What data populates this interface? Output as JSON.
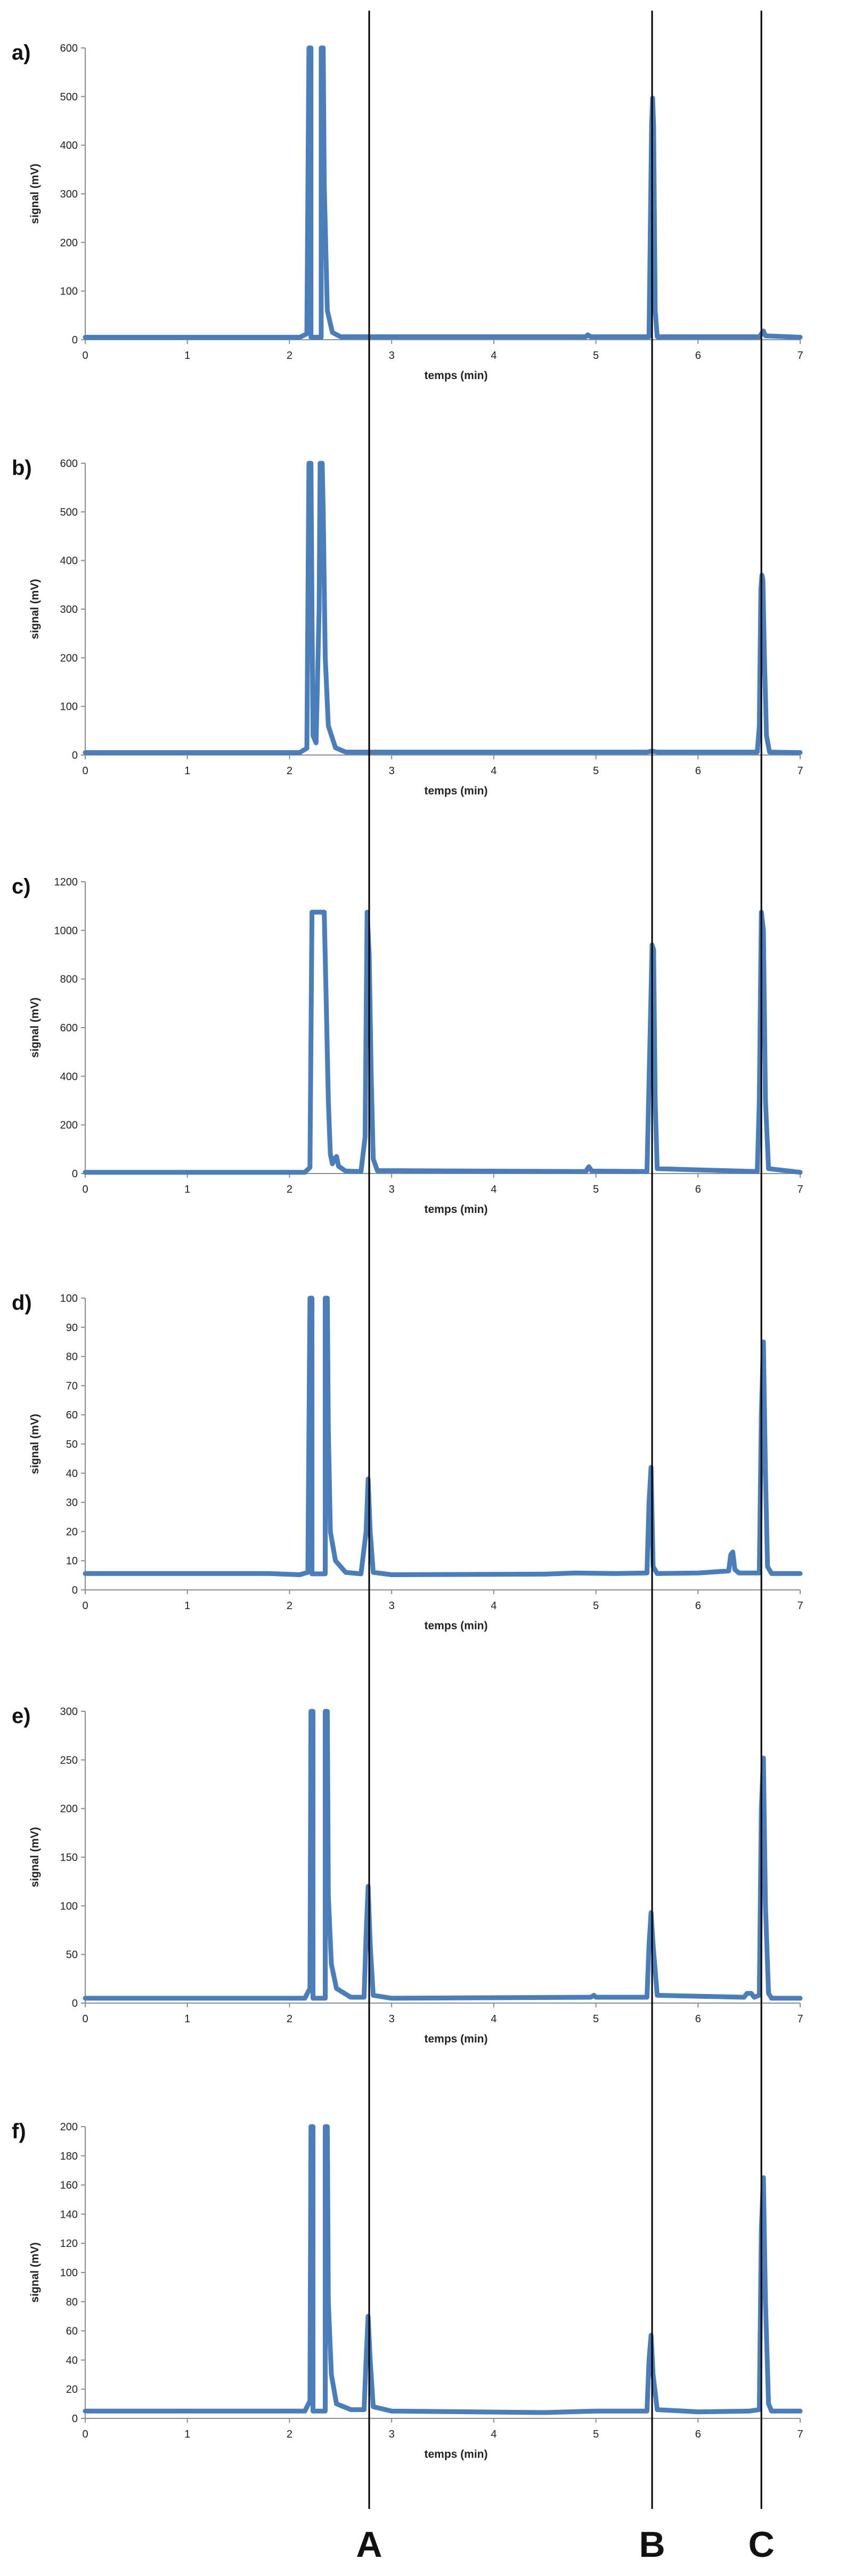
{
  "colors": {
    "series": "#4a7ebb",
    "axis": "#8c8c8c",
    "marker_line": "#000000"
  },
  "markers": [
    {
      "label": "A",
      "x": 2.78
    },
    {
      "label": "B",
      "x": 5.55
    },
    {
      "label": "C",
      "x": 6.62
    }
  ],
  "chart_data": [
    {
      "type": "line",
      "panel_label": "a)",
      "xlabel": "temps (min)",
      "ylabel": "signal (mV)",
      "xlim": [
        0,
        7
      ],
      "ylim": [
        0,
        600
      ],
      "xticks": [
        0,
        1,
        2,
        3,
        4,
        5,
        6,
        7
      ],
      "yticks": [
        0,
        100,
        200,
        300,
        400,
        500,
        600
      ],
      "series": [
        {
          "values": [
            [
              0,
              5
            ],
            [
              2.1,
              5
            ],
            [
              2.17,
              12
            ],
            [
              2.19,
              600
            ],
            [
              2.21,
              600
            ],
            [
              2.21,
              5
            ],
            [
              2.31,
              5
            ],
            [
              2.31,
              600
            ],
            [
              2.33,
              600
            ],
            [
              2.34,
              320
            ],
            [
              2.37,
              60
            ],
            [
              2.42,
              15
            ],
            [
              2.5,
              6
            ],
            [
              4.9,
              6
            ],
            [
              4.92,
              10
            ],
            [
              4.95,
              6
            ],
            [
              5.52,
              6
            ],
            [
              5.53,
              180
            ],
            [
              5.545,
              440
            ],
            [
              5.555,
              497
            ],
            [
              5.565,
              440
            ],
            [
              5.58,
              60
            ],
            [
              5.6,
              6
            ],
            [
              6.6,
              6
            ],
            [
              6.62,
              12
            ],
            [
              6.64,
              18
            ],
            [
              6.66,
              8
            ],
            [
              7,
              5
            ]
          ]
        }
      ]
    },
    {
      "type": "line",
      "panel_label": "b)",
      "xlabel": "temps (min)",
      "ylabel": "signal (mV)",
      "xlim": [
        0,
        7
      ],
      "ylim": [
        0,
        600
      ],
      "xticks": [
        0,
        1,
        2,
        3,
        4,
        5,
        6,
        7
      ],
      "yticks": [
        0,
        100,
        200,
        300,
        400,
        500,
        600
      ],
      "series": [
        {
          "values": [
            [
              0,
              5
            ],
            [
              2.1,
              5
            ],
            [
              2.17,
              14
            ],
            [
              2.19,
              600
            ],
            [
              2.21,
              600
            ],
            [
              2.22,
              300
            ],
            [
              2.23,
              40
            ],
            [
              2.26,
              25
            ],
            [
              2.29,
              300
            ],
            [
              2.3,
              600
            ],
            [
              2.32,
              600
            ],
            [
              2.33,
              500
            ],
            [
              2.35,
              200
            ],
            [
              2.38,
              60
            ],
            [
              2.45,
              15
            ],
            [
              2.55,
              6
            ],
            [
              5.5,
              6
            ],
            [
              5.55,
              8
            ],
            [
              5.6,
              6
            ],
            [
              6.58,
              6
            ],
            [
              6.6,
              60
            ],
            [
              6.615,
              340
            ],
            [
              6.625,
              370
            ],
            [
              6.635,
              360
            ],
            [
              6.65,
              200
            ],
            [
              6.67,
              40
            ],
            [
              6.7,
              6
            ],
            [
              7,
              5
            ]
          ]
        }
      ]
    },
    {
      "type": "line",
      "panel_label": "c)",
      "xlabel": "temps (min)",
      "ylabel": "signal (mV)",
      "xlim": [
        0,
        7
      ],
      "ylim": [
        0,
        1200
      ],
      "xticks": [
        0,
        1,
        2,
        3,
        4,
        5,
        6,
        7
      ],
      "yticks": [
        0,
        200,
        400,
        600,
        800,
        1000,
        1200
      ],
      "series": [
        {
          "values": [
            [
              0,
              5
            ],
            [
              2.15,
              5
            ],
            [
              2.2,
              25
            ],
            [
              2.22,
              1075
            ],
            [
              2.34,
              1075
            ],
            [
              2.36,
              700
            ],
            [
              2.38,
              300
            ],
            [
              2.4,
              80
            ],
            [
              2.42,
              40
            ],
            [
              2.44,
              60
            ],
            [
              2.46,
              70
            ],
            [
              2.48,
              30
            ],
            [
              2.55,
              10
            ],
            [
              2.7,
              8
            ],
            [
              2.74,
              150
            ],
            [
              2.76,
              1075
            ],
            [
              2.78,
              900
            ],
            [
              2.8,
              400
            ],
            [
              2.82,
              60
            ],
            [
              2.86,
              12
            ],
            [
              4.9,
              8
            ],
            [
              4.93,
              28
            ],
            [
              4.96,
              10
            ],
            [
              5.5,
              8
            ],
            [
              5.52,
              380
            ],
            [
              5.535,
              650
            ],
            [
              5.55,
              940
            ],
            [
              5.565,
              920
            ],
            [
              5.58,
              300
            ],
            [
              5.6,
              20
            ],
            [
              6.58,
              8
            ],
            [
              6.6,
              300
            ],
            [
              6.62,
              1075
            ],
            [
              6.64,
              1000
            ],
            [
              6.66,
              300
            ],
            [
              6.69,
              20
            ],
            [
              7,
              5
            ]
          ]
        }
      ]
    },
    {
      "type": "line",
      "panel_label": "d)",
      "xlabel": "temps (min)",
      "ylabel": "signal (mV)",
      "xlim": [
        0,
        7
      ],
      "ylim": [
        0,
        100
      ],
      "xticks": [
        0,
        1,
        2,
        3,
        4,
        5,
        6,
        7
      ],
      "yticks": [
        0,
        10,
        20,
        30,
        40,
        50,
        60,
        70,
        80,
        90,
        100
      ],
      "series": [
        {
          "values": [
            [
              0,
              5.6
            ],
            [
              1.8,
              5.6
            ],
            [
              2.1,
              5.2
            ],
            [
              2.18,
              6
            ],
            [
              2.2,
              100
            ],
            [
              2.22,
              100
            ],
            [
              2.22,
              5.5
            ],
            [
              2.35,
              5.5
            ],
            [
              2.35,
              100
            ],
            [
              2.37,
              100
            ],
            [
              2.38,
              55
            ],
            [
              2.4,
              20
            ],
            [
              2.45,
              10
            ],
            [
              2.55,
              6
            ],
            [
              2.7,
              5.5
            ],
            [
              2.75,
              20
            ],
            [
              2.77,
              38
            ],
            [
              2.79,
              20
            ],
            [
              2.82,
              6
            ],
            [
              3,
              5.2
            ],
            [
              4.5,
              5.4
            ],
            [
              4.8,
              5.8
            ],
            [
              5.2,
              5.6
            ],
            [
              5.5,
              5.8
            ],
            [
              5.52,
              30
            ],
            [
              5.54,
              42
            ],
            [
              5.56,
              8
            ],
            [
              5.6,
              5.6
            ],
            [
              6,
              5.8
            ],
            [
              6.3,
              6.5
            ],
            [
              6.32,
              12
            ],
            [
              6.34,
              13
            ],
            [
              6.36,
              7
            ],
            [
              6.4,
              5.8
            ],
            [
              6.6,
              5.8
            ],
            [
              6.62,
              60
            ],
            [
              6.64,
              85
            ],
            [
              6.66,
              40
            ],
            [
              6.68,
              8
            ],
            [
              6.72,
              5.6
            ],
            [
              7,
              5.6
            ]
          ]
        }
      ]
    },
    {
      "type": "line",
      "panel_label": "e)",
      "xlabel": "temps (min)",
      "ylabel": "signal (mV)",
      "xlim": [
        0,
        7
      ],
      "ylim": [
        0,
        300
      ],
      "xticks": [
        0,
        1,
        2,
        3,
        4,
        5,
        6,
        7
      ],
      "yticks": [
        0,
        50,
        100,
        150,
        200,
        250,
        300
      ],
      "series": [
        {
          "values": [
            [
              0,
              5
            ],
            [
              2.15,
              5
            ],
            [
              2.2,
              15
            ],
            [
              2.21,
              300
            ],
            [
              2.23,
              300
            ],
            [
              2.23,
              5
            ],
            [
              2.35,
              5
            ],
            [
              2.35,
              300
            ],
            [
              2.37,
              300
            ],
            [
              2.38,
              110
            ],
            [
              2.41,
              40
            ],
            [
              2.46,
              15
            ],
            [
              2.6,
              6
            ],
            [
              2.73,
              6
            ],
            [
              2.75,
              70
            ],
            [
              2.77,
              120
            ],
            [
              2.79,
              60
            ],
            [
              2.82,
              8
            ],
            [
              3,
              5
            ],
            [
              4.95,
              6
            ],
            [
              4.98,
              8
            ],
            [
              5.0,
              6
            ],
            [
              5.5,
              6
            ],
            [
              5.52,
              60
            ],
            [
              5.54,
              93
            ],
            [
              5.56,
              60
            ],
            [
              5.6,
              8
            ],
            [
              6.45,
              6
            ],
            [
              6.48,
              10
            ],
            [
              6.52,
              10
            ],
            [
              6.55,
              6
            ],
            [
              6.6,
              8
            ],
            [
              6.62,
              200
            ],
            [
              6.64,
              252
            ],
            [
              6.66,
              100
            ],
            [
              6.69,
              10
            ],
            [
              6.72,
              5
            ],
            [
              7,
              5
            ]
          ]
        }
      ]
    },
    {
      "type": "line",
      "panel_label": "f)",
      "xlabel": "temps (min)",
      "ylabel": "signal (mV)",
      "xlim": [
        0,
        7
      ],
      "ylim": [
        0,
        200
      ],
      "xticks": [
        0,
        1,
        2,
        3,
        4,
        5,
        6,
        7
      ],
      "yticks": [
        0,
        20,
        40,
        60,
        80,
        100,
        120,
        140,
        160,
        180,
        200
      ],
      "series": [
        {
          "values": [
            [
              0,
              5
            ],
            [
              2.15,
              5
            ],
            [
              2.2,
              12
            ],
            [
              2.21,
              200
            ],
            [
              2.23,
              200
            ],
            [
              2.23,
              5
            ],
            [
              2.35,
              5
            ],
            [
              2.35,
              200
            ],
            [
              2.37,
              200
            ],
            [
              2.38,
              80
            ],
            [
              2.41,
              30
            ],
            [
              2.46,
              10
            ],
            [
              2.6,
              6
            ],
            [
              2.73,
              6
            ],
            [
              2.75,
              40
            ],
            [
              2.77,
              70
            ],
            [
              2.79,
              40
            ],
            [
              2.82,
              8
            ],
            [
              3,
              5
            ],
            [
              4.5,
              4
            ],
            [
              5.0,
              5
            ],
            [
              5.5,
              5
            ],
            [
              5.52,
              40
            ],
            [
              5.54,
              57
            ],
            [
              5.56,
              30
            ],
            [
              5.6,
              6
            ],
            [
              6.0,
              4.5
            ],
            [
              6.5,
              5
            ],
            [
              6.6,
              6
            ],
            [
              6.62,
              130
            ],
            [
              6.64,
              165
            ],
            [
              6.66,
              80
            ],
            [
              6.69,
              10
            ],
            [
              6.72,
              5
            ],
            [
              7,
              5
            ]
          ]
        }
      ]
    }
  ]
}
